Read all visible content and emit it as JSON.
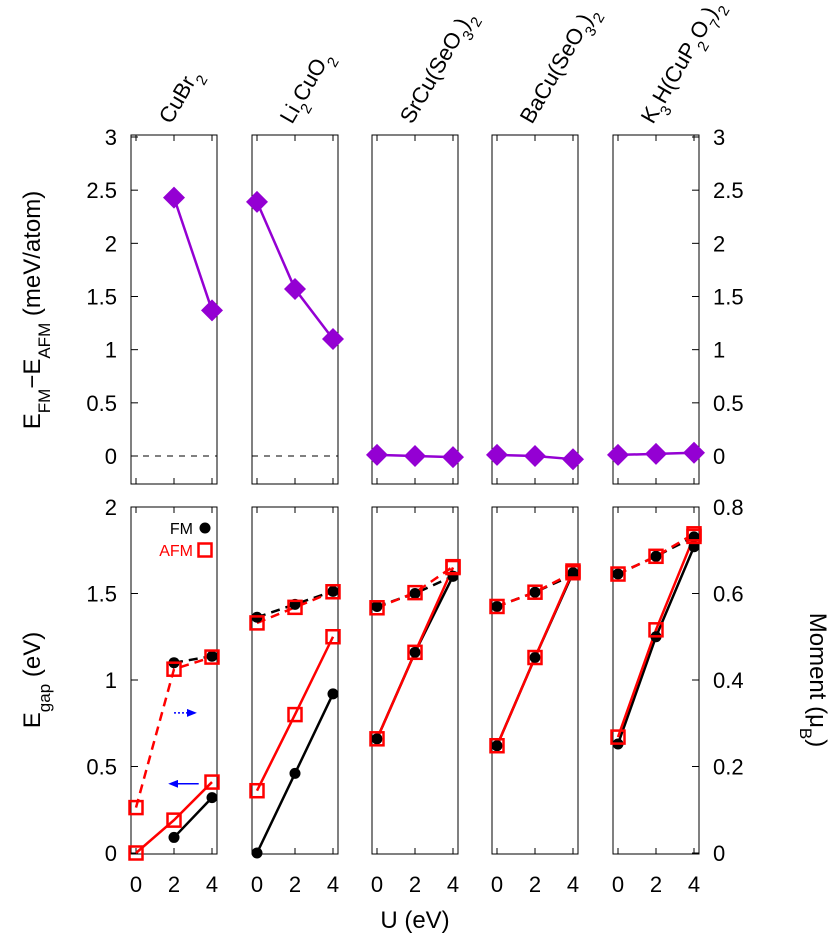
{
  "chart_data": {
    "type": "line",
    "compounds": [
      {
        "id": "cubr2",
        "label_parts": [
          {
            "t": "CuBr"
          },
          {
            "t": "2",
            "sub": true
          }
        ]
      },
      {
        "id": "li2cuo2",
        "label_parts": [
          {
            "t": "Li"
          },
          {
            "t": "2",
            "sub": true
          },
          {
            "t": "CuO"
          },
          {
            "t": "2",
            "sub": true
          }
        ]
      },
      {
        "id": "srcuseo3",
        "label_parts": [
          {
            "t": "SrCu(SeO"
          },
          {
            "t": "3",
            "sub": true
          },
          {
            "t": ")"
          },
          {
            "t": "2",
            "sub": true
          }
        ]
      },
      {
        "id": "bacuseo3",
        "label_parts": [
          {
            "t": "BaCu(SeO"
          },
          {
            "t": "3",
            "sub": true
          },
          {
            "t": ")"
          },
          {
            "t": "2",
            "sub": true
          }
        ]
      },
      {
        "id": "k3hcup2o7",
        "label_parts": [
          {
            "t": "K"
          },
          {
            "t": "3",
            "sub": true
          },
          {
            "t": "H(CuP"
          },
          {
            "t": "2",
            "sub": true
          },
          {
            "t": "O"
          },
          {
            "t": "7",
            "sub": true
          },
          {
            "t": ")"
          },
          {
            "t": "2",
            "sub": true
          }
        ]
      }
    ],
    "x_ticks": [
      "0",
      "2",
      "4"
    ],
    "x_values": [
      0,
      2,
      4
    ],
    "xlabel": "U (eV)",
    "top": {
      "ylabel_parts": [
        {
          "t": "E"
        },
        {
          "t": "FM",
          "sub": true
        },
        {
          "t": "−E"
        },
        {
          "t": "AFM",
          "sub": true
        },
        {
          "t": " (meV/atom)"
        }
      ],
      "ylim": [
        -0.25,
        3
      ],
      "y_ticks": [
        "0",
        "0.5",
        "1",
        "1.5",
        "2",
        "2.5",
        "3"
      ],
      "y_tick_values": [
        0,
        0.5,
        1,
        1.5,
        2,
        2.5,
        3
      ],
      "right_ticks": [
        "0",
        "0.5",
        "1",
        "1.5",
        "2",
        "2.5",
        "3"
      ],
      "series": [
        {
          "compound": "cubr2",
          "x": [
            2,
            4
          ],
          "y": [
            2.43,
            1.37
          ]
        },
        {
          "compound": "li2cuo2",
          "x": [
            0,
            2,
            4
          ],
          "y": [
            2.39,
            1.57,
            1.1
          ]
        },
        {
          "compound": "srcuseo3",
          "x": [
            0,
            2,
            4
          ],
          "y": [
            0.01,
            0.0,
            -0.01
          ]
        },
        {
          "compound": "bacuseo3",
          "x": [
            0,
            2,
            4
          ],
          "y": [
            0.01,
            0.0,
            -0.03
          ]
        },
        {
          "compound": "k3hcup2o7",
          "x": [
            0,
            2,
            4
          ],
          "y": [
            0.01,
            0.02,
            0.03
          ]
        }
      ],
      "zero_line_compounds": [
        "cubr2",
        "li2cuo2"
      ],
      "color": "#9400D3"
    },
    "bottom": {
      "ylabel_parts": [
        {
          "t": "E"
        },
        {
          "t": "gap",
          "sub": true
        },
        {
          "t": " (eV)"
        }
      ],
      "ylim": [
        0,
        2
      ],
      "y_ticks": [
        "0",
        "0.5",
        "1",
        "1.5",
        "2"
      ],
      "y_tick_values": [
        0,
        0.5,
        1,
        1.5,
        2
      ],
      "y2label_parts": [
        {
          "t": "Moment ("
        },
        {
          "t": "μ"
        },
        {
          "t": "B",
          "sub": true
        },
        {
          "t": ")"
        }
      ],
      "y2lim": [
        0,
        0.8
      ],
      "y2_ticks": [
        "0",
        "0.2",
        "0.4",
        "0.6",
        "0.8"
      ],
      "y2_tick_values": [
        0,
        0.2,
        0.4,
        0.6,
        0.8
      ],
      "legend": [
        {
          "name": "FM",
          "color": "#000000",
          "marker": "filled-circle"
        },
        {
          "name": "AFM",
          "color": "#ff0000",
          "marker": "open-square"
        }
      ],
      "gap_series": {
        "cubr2": {
          "FM": {
            "x": [
              2,
              4
            ],
            "y": [
              0.09,
              0.32
            ]
          },
          "AFM": {
            "x": [
              0,
              2,
              4
            ],
            "y": [
              0.0,
              0.19,
              0.41
            ]
          }
        },
        "li2cuo2": {
          "FM": {
            "x": [
              0,
              2,
              4
            ],
            "y": [
              0.0,
              0.46,
              0.92
            ]
          },
          "AFM": {
            "x": [
              0,
              2,
              4
            ],
            "y": [
              0.36,
              0.8,
              1.25
            ]
          }
        },
        "srcuseo3": {
          "FM": {
            "x": [
              0,
              2,
              4
            ],
            "y": [
              0.66,
              1.16,
              1.6
            ]
          },
          "AFM": {
            "x": [
              0,
              2,
              4
            ],
            "y": [
              0.66,
              1.16,
              1.65
            ]
          }
        },
        "bacuseo3": {
          "FM": {
            "x": [
              0,
              2,
              4
            ],
            "y": [
              0.62,
              1.13,
              1.62
            ]
          },
          "AFM": {
            "x": [
              0,
              2,
              4
            ],
            "y": [
              0.62,
              1.13,
              1.63
            ]
          }
        },
        "k3hcup2o7": {
          "FM": {
            "x": [
              0,
              2,
              4
            ],
            "y": [
              0.63,
              1.25,
              1.77
            ]
          },
          "AFM": {
            "x": [
              0,
              2,
              4
            ],
            "y": [
              0.67,
              1.29,
              1.83
            ]
          }
        }
      },
      "moment_series": {
        "cubr2": {
          "FM": {
            "x": [
              2,
              4
            ],
            "y": [
              0.44,
              0.455
            ]
          },
          "AFM": {
            "x": [
              0,
              2,
              4
            ],
            "y": [
              0.105,
              0.425,
              0.453
            ]
          }
        },
        "li2cuo2": {
          "FM": {
            "x": [
              0,
              2,
              4
            ],
            "y": [
              0.545,
              0.575,
              0.605
            ]
          },
          "AFM": {
            "x": [
              0,
              2,
              4
            ],
            "y": [
              0.532,
              0.568,
              0.604
            ]
          }
        },
        "srcuseo3": {
          "FM": {
            "x": [
              0,
              2,
              4
            ],
            "y": [
              0.57,
              0.6,
              0.64
            ]
          },
          "AFM": {
            "x": [
              0,
              2,
              4
            ],
            "y": [
              0.567,
              0.602,
              0.662
            ]
          }
        },
        "bacuseo3": {
          "FM": {
            "x": [
              0,
              2,
              4
            ],
            "y": [
              0.57,
              0.603,
              0.643
            ]
          },
          "AFM": {
            "x": [
              0,
              2,
              4
            ],
            "y": [
              0.57,
              0.603,
              0.648
            ]
          }
        },
        "k3hcup2o7": {
          "FM": {
            "x": [
              0,
              2,
              4
            ],
            "y": [
              0.645,
              0.686,
              0.731
            ]
          },
          "AFM": {
            "x": [
              0,
              2,
              4
            ],
            "y": [
              0.645,
              0.686,
              0.738
            ]
          }
        }
      },
      "arrows": [
        {
          "compound": "cubr2",
          "direction": "right",
          "from_x": 2.0,
          "to_x": 3.1,
          "y": 0.81,
          "color": "#0000ff",
          "style": "dotted",
          "meaning": "points to right axis"
        },
        {
          "compound": "cubr2",
          "direction": "left",
          "from_x": 3.3,
          "to_x": 1.8,
          "y": 0.4,
          "color": "#0000ff",
          "style": "solid",
          "meaning": "points to left axis"
        }
      ]
    }
  }
}
